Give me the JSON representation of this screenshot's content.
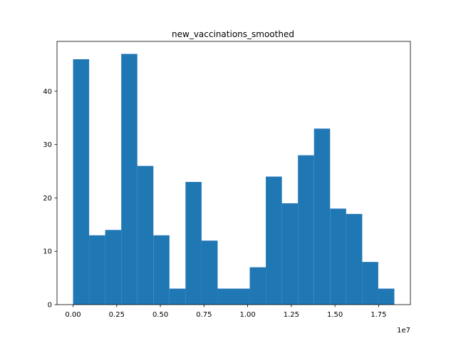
{
  "chart_data": {
    "type": "bar",
    "title": "new_vaccinations_smoothed",
    "xlabel": "",
    "ylabel": "",
    "x_offset_label": "1e7",
    "bin_range": [
      0,
      18400000
    ],
    "bin_count": 20,
    "values": [
      46,
      13,
      14,
      47,
      26,
      13,
      3,
      23,
      12,
      3,
      3,
      7,
      24,
      19,
      28,
      33,
      18,
      17,
      8,
      3
    ],
    "xlim": [
      -0.092,
      1.932
    ],
    "ylim": [
      0,
      49.35
    ],
    "x_ticks": [
      0.0,
      0.25,
      0.5,
      0.75,
      1.0,
      1.25,
      1.5,
      1.75
    ],
    "x_tick_labels": [
      "0.00",
      "0.25",
      "0.50",
      "0.75",
      "1.00",
      "1.25",
      "1.50",
      "1.75"
    ],
    "y_ticks": [
      0,
      10,
      20,
      30,
      40
    ],
    "y_tick_labels": [
      "0",
      "10",
      "20",
      "30",
      "40"
    ],
    "bar_color": "#1f77b4",
    "grid": false,
    "legend": "none"
  }
}
